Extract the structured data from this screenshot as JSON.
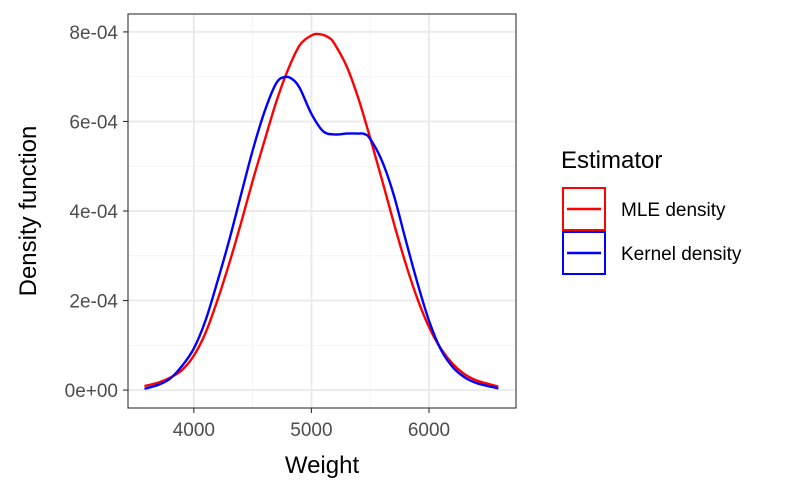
{
  "chart_data": {
    "type": "line",
    "xlabel": "Weight",
    "ylabel": "Density function",
    "xlim": [
      3440,
      6740
    ],
    "ylim": [
      -4e-05,
      0.00084
    ],
    "x_ticks": [
      {
        "value": 4000,
        "label": "4000"
      },
      {
        "value": 5000,
        "label": "5000"
      },
      {
        "value": 6000,
        "label": "6000"
      }
    ],
    "x_minor_ticks": [
      4500,
      5500
    ],
    "y_ticks": [
      {
        "value": 0,
        "label": "0e+00"
      },
      {
        "value": 0.0002,
        "label": "2e-04"
      },
      {
        "value": 0.0004,
        "label": "4e-04"
      },
      {
        "value": 0.0006,
        "label": "6e-04"
      },
      {
        "value": 0.0008,
        "label": "8e-04"
      }
    ],
    "y_minor_ticks": [
      0.0001,
      0.0003,
      0.0005,
      0.0007
    ],
    "grid": true,
    "legend": {
      "title": "Estimator",
      "placement": "right"
    },
    "series": [
      {
        "name": "MLE density",
        "color": "#ff0000",
        "x": [
          3580,
          3700,
          3800,
          3900,
          4000,
          4100,
          4200,
          4300,
          4400,
          4500,
          4600,
          4700,
          4800,
          4900,
          5000,
          5070,
          5150,
          5200,
          5300,
          5400,
          5500,
          5600,
          5700,
          5800,
          5900,
          6000,
          6100,
          6200,
          6300,
          6400,
          6500,
          6590
        ],
        "values": [
          9e-06,
          1.7e-05,
          2.8e-05,
          4.5e-05,
          7.7e-05,
          0.000128,
          0.0002,
          0.000282,
          0.000372,
          0.000467,
          0.000556,
          0.000643,
          0.000715,
          0.00077,
          0.000792,
          0.000795,
          0.000787,
          0.000772,
          0.000723,
          0.000651,
          0.000563,
          0.00047,
          0.000374,
          0.000284,
          0.000205,
          0.000141,
          9.3e-05,
          5.9e-05,
          3.6e-05,
          2.2e-05,
          1.4e-05,
          8e-06
        ]
      },
      {
        "name": "Kernel density",
        "color": "#0000ff",
        "x": [
          3580,
          3700,
          3800,
          3900,
          4000,
          4100,
          4200,
          4300,
          4400,
          4500,
          4600,
          4700,
          4770,
          4830,
          4900,
          5000,
          5100,
          5200,
          5300,
          5400,
          5450,
          5500,
          5600,
          5700,
          5800,
          5900,
          6000,
          6100,
          6200,
          6300,
          6400,
          6500,
          6590
        ],
        "values": [
          3e-06,
          1.2e-05,
          2.6e-05,
          5.4e-05,
          9.3e-05,
          0.000156,
          0.000242,
          0.000334,
          0.000435,
          0.000535,
          0.000621,
          0.000685,
          0.000699,
          0.000696,
          0.000675,
          0.000617,
          0.000578,
          0.000571,
          0.000573,
          0.000573,
          0.000572,
          0.000561,
          0.000512,
          0.000436,
          0.000337,
          0.000241,
          0.000155,
          9.1e-05,
          5.2e-05,
          2.9e-05,
          1.6e-05,
          9e-06,
          4e-06
        ]
      }
    ]
  },
  "colors": {
    "panel_border": "#333333",
    "grid_major": "#ebebeb",
    "grid_minor": "#f4f4f4",
    "tick_text": "#4d4d4d",
    "title_text": "#000000"
  }
}
